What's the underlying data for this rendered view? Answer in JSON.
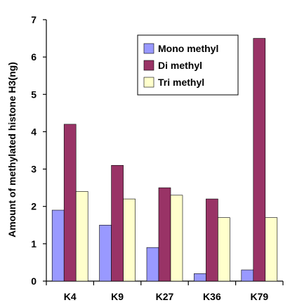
{
  "chart_data": {
    "type": "bar",
    "categories": [
      "K4",
      "K9",
      "K27",
      "K36",
      "K79"
    ],
    "series": [
      {
        "name": "Mono methyl",
        "values": [
          1.9,
          1.5,
          0.9,
          0.2,
          0.3
        ],
        "color": "#9999ff"
      },
      {
        "name": "Di methyl",
        "values": [
          4.2,
          3.1,
          2.5,
          2.2,
          6.5
        ],
        "color": "#993366"
      },
      {
        "name": "Tri methyl",
        "values": [
          2.4,
          2.2,
          2.3,
          1.7,
          1.7
        ],
        "color": "#ffffcc"
      }
    ],
    "title": "",
    "xlabel": "",
    "ylabel": "Amount of methylated histone H3(ng)",
    "ylim": [
      0,
      7
    ],
    "yticks": [
      "0",
      "1",
      "2",
      "3",
      "4",
      "5",
      "6",
      "7"
    ],
    "grid": false,
    "legend_position": "top-right"
  }
}
